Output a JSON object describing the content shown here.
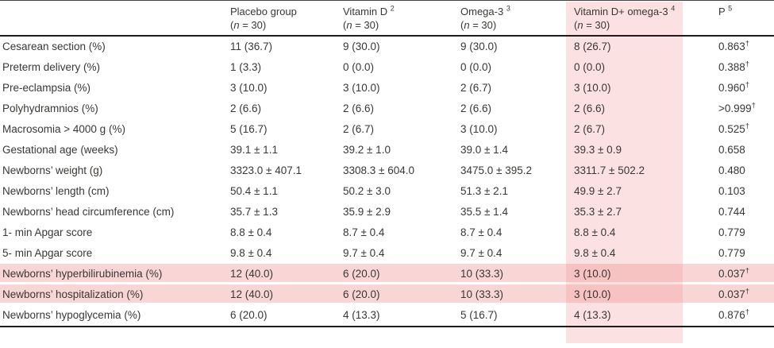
{
  "meta": {
    "dagger_symbol": "†",
    "n_caption": "(n = 30)"
  },
  "colors": {
    "row_highlight": "rgba(237,127,127,0.32)",
    "column_highlight": "rgba(240,128,128,0.24)",
    "text": "#3a3734",
    "rule": "#1d1d1b"
  },
  "table": {
    "corner_label": "",
    "columns": [
      {
        "label": "Placebo group",
        "sup": "",
        "n": "(n = 30)"
      },
      {
        "label": "Vitamin D ",
        "sup": "2",
        "n": "(n = 30)"
      },
      {
        "label": "Omega-3",
        "sup": "3",
        "n": "(n = 30)"
      },
      {
        "label": "Vitamin D+ omega-3",
        "sup": "4",
        "n": "(n = 30)",
        "highlighted": true
      },
      {
        "label": "P",
        "sup": "5",
        "n": ""
      }
    ],
    "rows": [
      {
        "label": "Cesarean section (%)",
        "values": [
          "11 (36.7)",
          "9 (30.0)",
          "9 (30.0)",
          "8 (26.7)"
        ],
        "p": "0.863",
        "dagger": true,
        "highlight": false
      },
      {
        "label": "Preterm delivery (%)",
        "values": [
          "1 (3.3)",
          "0 (0.0)",
          "0 (0.0)",
          "0 (0.0)"
        ],
        "p": "0.388",
        "dagger": true,
        "highlight": false
      },
      {
        "label": "Pre-eclampsia (%)",
        "values": [
          "3 (10.0)",
          "3 (10.0)",
          "2 (6.7)",
          "3 (10.0)"
        ],
        "p": "0.960",
        "dagger": true,
        "highlight": false
      },
      {
        "label": "Polyhydramnios (%)",
        "values": [
          "2 (6.6)",
          "2 (6.6)",
          "2 (6.6)",
          "2 (6.6)"
        ],
        "p": ">0.999",
        "dagger": true,
        "highlight": false
      },
      {
        "label": "Macrosomia > 4000 g (%)",
        "values": [
          "5 (16.7)",
          "2 (6.7)",
          "3 (10.0)",
          "2 (6.7)"
        ],
        "p": "0.525",
        "dagger": true,
        "highlight": false
      },
      {
        "label": "Gestational age (weeks)",
        "values": [
          "39.1 ± 1.1",
          "39.2 ± 1.0",
          "39.0 ± 1.4",
          "39.3 ± 0.9"
        ],
        "p": "0.658",
        "dagger": false,
        "highlight": false
      },
      {
        "label": "Newborns’ weight (g)",
        "values": [
          "3323.0 ± 407.1",
          "3308.3 ± 604.0",
          "3475.0 ± 395.2",
          "3311.7 ± 502.2"
        ],
        "p": "0.480",
        "dagger": false,
        "highlight": false
      },
      {
        "label": "Newborns’ length (cm)",
        "values": [
          "50.4 ± 1.1",
          "50.2 ± 3.0",
          "51.3 ± 2.1",
          "49.9 ± 2.7"
        ],
        "p": "0.103",
        "dagger": false,
        "highlight": false
      },
      {
        "label": "Newborns’ head circumference (cm)",
        "values": [
          "35.7 ± 1.3",
          "35.9 ± 2.9",
          "35.5 ± 1.4",
          "35.3 ± 2.7"
        ],
        "p": "0.744",
        "dagger": false,
        "highlight": false
      },
      {
        "label": "1- min Apgar score",
        "values": [
          "8.8 ± 0.4",
          "8.7 ± 0.4",
          "8.7 ± 0.4",
          "8.8 ± 0.4"
        ],
        "p": "0.779",
        "dagger": false,
        "highlight": false
      },
      {
        "label": "5- min Apgar score",
        "values": [
          "9.8 ± 0.4",
          "9.7 ± 0.4",
          "9.7 ± 0.4",
          "9.8 ± 0.4"
        ],
        "p": "0.779",
        "dagger": false,
        "highlight": false
      },
      {
        "label": "Newborns’ hyperbilirubinemia (%)",
        "values": [
          "12 (40.0)",
          "6 (20.0)",
          "10 (33.3)",
          "3 (10.0)"
        ],
        "p": "0.037",
        "dagger": true,
        "highlight": true
      },
      {
        "label": "Newborns’ hospitalization (%)",
        "values": [
          "12 (40.0)",
          "6 (20.0)",
          "10 (33.3)",
          "3 (10.0)"
        ],
        "p": "0.037",
        "dagger": true,
        "highlight": true
      },
      {
        "label": "Newborns’ hypoglycemia (%)",
        "values": [
          "6 (20.0)",
          "4 (13.3)",
          "5 (16.7)",
          "4 (13.3)"
        ],
        "p": "0.876",
        "dagger": true,
        "highlight": false
      }
    ]
  }
}
